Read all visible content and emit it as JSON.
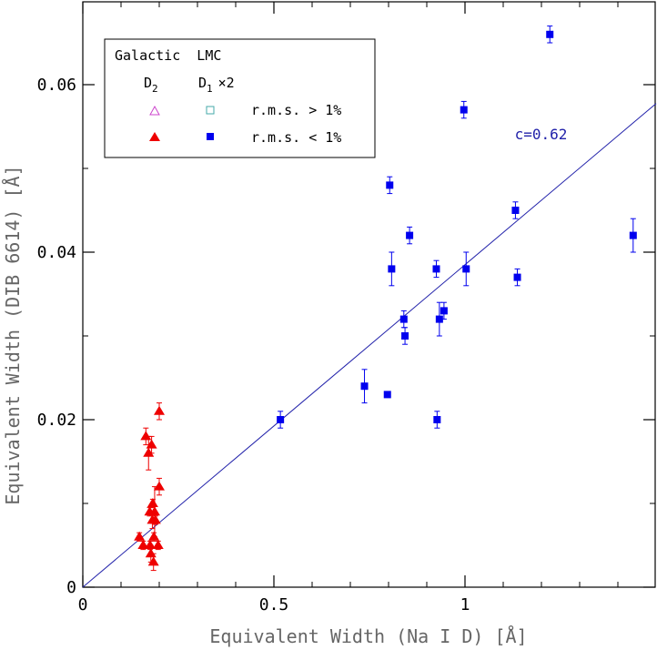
{
  "chart_data": {
    "type": "scatter",
    "title": "",
    "xlabel": "Equivalent Width (Na I D) [Å]",
    "ylabel": "Equivalent Width (DIB 6614) [Å]",
    "xlim": [
      0,
      1.5
    ],
    "ylim": [
      0,
      0.07
    ],
    "x_ticks": [
      {
        "value": 0,
        "label": "0"
      },
      {
        "value": 0.5,
        "label": "0.5"
      },
      {
        "value": 1,
        "label": "1"
      }
    ],
    "y_ticks": [
      {
        "value": 0,
        "label": "0"
      },
      {
        "value": 0.02,
        "label": "0.02"
      },
      {
        "value": 0.04,
        "label": "0.04"
      },
      {
        "value": 0.06,
        "label": "0.06"
      }
    ],
    "x_minor_step": 0.1,
    "y_minor_step": 0.01,
    "legend": {
      "position": "top-left",
      "header": "Galactic  LMC",
      "col1_main": "D",
      "col1_sub": "2",
      "col2_main": "D",
      "col2_sub": "1",
      "col2_suffix": "×2",
      "row1_label": "r.m.s. > 1%",
      "row2_label": "r.m.s. < 1%"
    },
    "fit_line": {
      "slope": 0.0385,
      "label": "c=0.62",
      "label_at": [
        1.13,
        0.0535
      ],
      "color": "#2222aa"
    },
    "series": [
      {
        "name": "Galactic D2 r.m.s. < 1%",
        "marker": "triangle",
        "color": "#ee0000",
        "points": [
          {
            "x": 0.148,
            "y": 0.006,
            "err": 0.0005
          },
          {
            "x": 0.158,
            "y": 0.005,
            "err": 0.0005
          },
          {
            "x": 0.165,
            "y": 0.018,
            "err": 0.001
          },
          {
            "x": 0.172,
            "y": 0.016,
            "err": 0.002
          },
          {
            "x": 0.175,
            "y": 0.009,
            "err": 0.0005
          },
          {
            "x": 0.176,
            "y": 0.005,
            "err": 0.0005
          },
          {
            "x": 0.178,
            "y": 0.004,
            "err": 0.001
          },
          {
            "x": 0.18,
            "y": 0.017,
            "err": 0.001
          },
          {
            "x": 0.182,
            "y": 0.008,
            "err": 0.001
          },
          {
            "x": 0.183,
            "y": 0.01,
            "err": 0.0005
          },
          {
            "x": 0.185,
            "y": 0.003,
            "err": 0.001
          },
          {
            "x": 0.186,
            "y": 0.006,
            "err": 0.0005
          },
          {
            "x": 0.188,
            "y": 0.009,
            "err": 0.003
          },
          {
            "x": 0.19,
            "y": 0.008,
            "err": 0.0005
          },
          {
            "x": 0.197,
            "y": 0.005,
            "err": 0.0005
          },
          {
            "x": 0.2,
            "y": 0.012,
            "err": 0.001
          },
          {
            "x": 0.2,
            "y": 0.021,
            "err": 0.001
          }
        ]
      },
      {
        "name": "LMC D1 ×2 r.m.s. < 1%",
        "marker": "square",
        "color": "#0000ee",
        "points": [
          {
            "x": 0.517,
            "y": 0.02,
            "err": 0.001
          },
          {
            "x": 0.737,
            "y": 0.024,
            "err": 0.002
          },
          {
            "x": 0.797,
            "y": 0.023,
            "err": 0
          },
          {
            "x": 0.803,
            "y": 0.048,
            "err": 0.001
          },
          {
            "x": 0.808,
            "y": 0.038,
            "err": 0.002
          },
          {
            "x": 0.84,
            "y": 0.032,
            "err": 0.001
          },
          {
            "x": 0.843,
            "y": 0.03,
            "err": 0.001
          },
          {
            "x": 0.855,
            "y": 0.042,
            "err": 0.001
          },
          {
            "x": 0.925,
            "y": 0.038,
            "err": 0.001
          },
          {
            "x": 0.927,
            "y": 0.02,
            "err": 0.001
          },
          {
            "x": 0.933,
            "y": 0.032,
            "err": 0.002
          },
          {
            "x": 0.945,
            "y": 0.033,
            "err": 0.001
          },
          {
            "x": 0.997,
            "y": 0.057,
            "err": 0.001
          },
          {
            "x": 1.003,
            "y": 0.038,
            "err": 0.002
          },
          {
            "x": 1.132,
            "y": 0.045,
            "err": 0.001
          },
          {
            "x": 1.137,
            "y": 0.037,
            "err": 0.001
          },
          {
            "x": 1.222,
            "y": 0.066,
            "err": 0.001
          },
          {
            "x": 1.44,
            "y": 0.042,
            "err": 0.002
          }
        ]
      }
    ]
  }
}
